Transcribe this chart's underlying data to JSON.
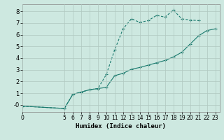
{
  "xlabel": "Humidex (Indice chaleur)",
  "background_color": "#cde8e0",
  "line_color": "#1a7a6e",
  "grid_color": "#b0c8c0",
  "xlim": [
    0,
    23.5
  ],
  "ylim": [
    -0.6,
    8.6
  ],
  "yticks": [
    0,
    1,
    2,
    3,
    4,
    5,
    6,
    7,
    8
  ],
  "ytick_labels": [
    "-0",
    "1",
    "2",
    "3",
    "4",
    "5",
    "6",
    "7",
    "8"
  ],
  "xticks": [
    0,
    5,
    6,
    7,
    8,
    9,
    10,
    11,
    12,
    13,
    14,
    15,
    16,
    17,
    18,
    19,
    20,
    21,
    22,
    23
  ],
  "line1_x": [
    0,
    5,
    6,
    7,
    8,
    9,
    10,
    11,
    12,
    13,
    14,
    15,
    16,
    17,
    18,
    19,
    20,
    21
  ],
  "line1_y": [
    -0.1,
    -0.3,
    0.9,
    1.1,
    1.3,
    1.4,
    2.6,
    4.7,
    6.5,
    7.35,
    7.05,
    7.2,
    7.65,
    7.5,
    8.1,
    7.35,
    7.25,
    7.2
  ],
  "line2_x": [
    0,
    5,
    6,
    7,
    8,
    9,
    10,
    11,
    12,
    13,
    14,
    15,
    16,
    17,
    18,
    19,
    20,
    21,
    22,
    23
  ],
  "line2_y": [
    -0.1,
    -0.3,
    0.9,
    1.1,
    1.3,
    1.4,
    1.5,
    2.5,
    2.7,
    3.05,
    3.2,
    3.4,
    3.6,
    3.8,
    4.1,
    4.5,
    5.2,
    5.9,
    6.35,
    6.5
  ]
}
